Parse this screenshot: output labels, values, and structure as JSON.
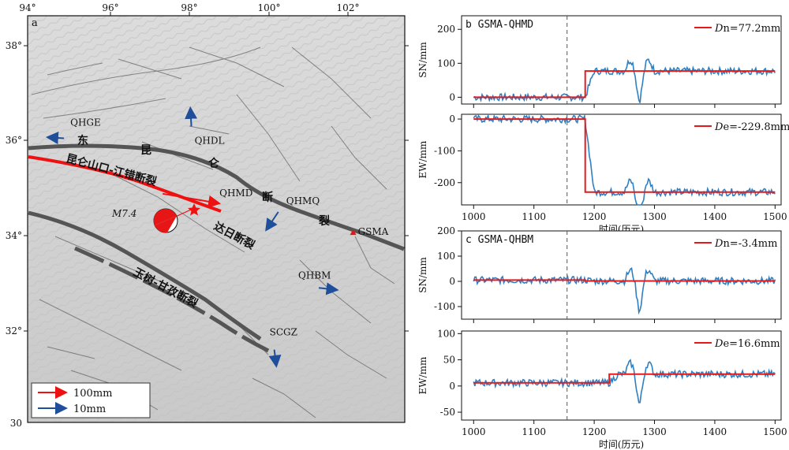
{
  "map": {
    "panel_label": "a",
    "lon_ticks": [
      "94°",
      "96°",
      "98°",
      "100°",
      "102°"
    ],
    "lat_ticks": [
      "38°",
      "36°",
      "34°",
      "32°",
      "30"
    ],
    "stations": [
      {
        "name": "QHGE",
        "lon": 94.9,
        "lat": 36.05,
        "east_mm": -8,
        "north_mm": 0.5
      },
      {
        "name": "QHDL",
        "lon": 98.05,
        "lat": 36.3,
        "east_mm": -0.5,
        "north_mm": 9
      },
      {
        "name": "QHMD",
        "lon": 98.9,
        "lat": 34.75,
        "east_mm": 0,
        "north_mm": 0
      },
      {
        "name": "QHMQ",
        "lon": 100.2,
        "lat": 34.5,
        "east_mm": -6,
        "north_mm": -9
      },
      {
        "name": "GSMA",
        "lon": 102.05,
        "lat": 34.08,
        "east_mm": 0,
        "north_mm": 0
      },
      {
        "name": "QHBM",
        "lon": 101.2,
        "lat": 32.9,
        "east_mm": 9,
        "north_mm": -1
      },
      {
        "name": "SCGZ",
        "lon": 100.1,
        "lat": 31.6,
        "east_mm": 1,
        "north_mm": -8
      }
    ],
    "fault_labels": {
      "kunlun": "昆仑山口-江错断裂",
      "dari": "达日断裂",
      "yushu": "玉树-甘孜断裂",
      "east_kunlun_chars": [
        "东",
        "昆",
        "仑",
        "断",
        "裂"
      ]
    },
    "earthquake": {
      "magnitude": "M7.4",
      "lon": 98.35,
      "lat": 34.6
    },
    "legend": [
      {
        "label": "100mm",
        "color": "#ee1111"
      },
      {
        "label": "10mm",
        "color": "#1f4e9a"
      }
    ]
  },
  "timeseries": {
    "ylabel_sn": "SN/mm",
    "ylabel_ew": "EW/mm",
    "xlabel": "时间(历元)",
    "series_color": "#2f7fc1",
    "fit_color": "#e31a1c",
    "event_epoch": 1155,
    "panels": [
      {
        "panel_label": "b",
        "title": "GSMA-QHMD",
        "component": "SN",
        "offset_prefix": "D",
        "offset_sub": "n",
        "offset_text": "=77.2mm",
        "before": 0,
        "after": 77.2,
        "step_epoch": 1185,
        "ylim": [
          -20,
          240
        ],
        "yticks": [
          "200",
          "100",
          "0"
        ]
      },
      {
        "panel_label": "",
        "title": "",
        "component": "EW",
        "offset_prefix": "D",
        "offset_sub": "e",
        "offset_text": "=-229.8mm",
        "before": 0,
        "after": -229.8,
        "step_epoch": 1185,
        "ylim": [
          -270,
          15
        ],
        "yticks": [
          "0",
          "-100",
          "-200"
        ]
      },
      {
        "panel_label": "c",
        "title": "GSMA-QHBM",
        "component": "SN",
        "offset_prefix": "D",
        "offset_sub": "n",
        "offset_text": "=-3.4mm",
        "before": 5,
        "after": 1.6,
        "step_epoch": 1185,
        "ylim": [
          -150,
          200
        ],
        "yticks": [
          "200",
          "100",
          "0",
          "-100"
        ]
      },
      {
        "panel_label": "",
        "title": "",
        "component": "EW",
        "offset_prefix": "D",
        "offset_sub": "e",
        "offset_text": "=16.6mm",
        "before": 6,
        "after": 22.6,
        "step_epoch": 1225,
        "ylim": [
          -65,
          105
        ],
        "yticks": [
          "100",
          "50",
          "0",
          "-50"
        ]
      }
    ],
    "x_ticks": [
      "1000",
      "1100",
      "1200",
      "1300",
      "1400",
      "1500"
    ],
    "x_range": [
      980,
      1510
    ]
  }
}
